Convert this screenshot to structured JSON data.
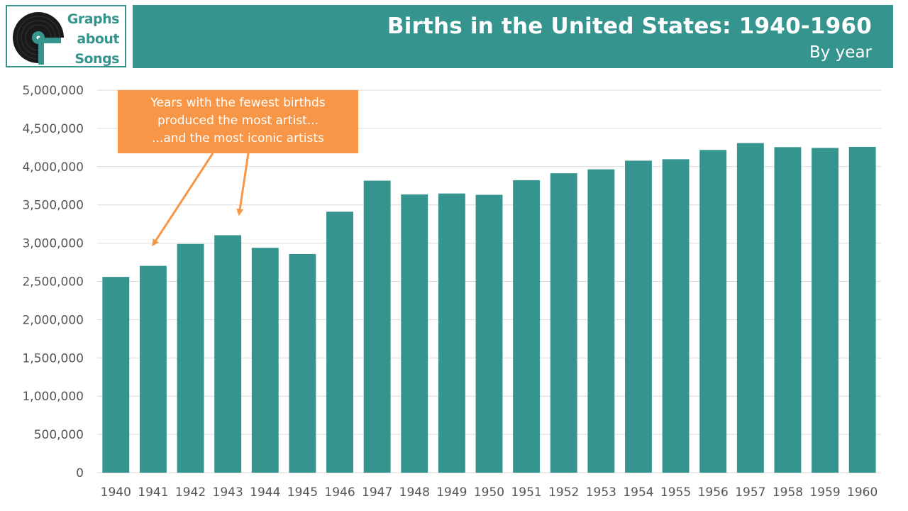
{
  "logo": {
    "line1": "Graphs",
    "line2": "about",
    "line3": "Songs",
    "icon": "vinyl-record-icon",
    "color": "#35948e"
  },
  "header": {
    "title": "Births in the United States: 1940-1960",
    "subtitle": "By year",
    "band_color": "#35948e"
  },
  "annotation": {
    "line1": "Years with the fewest birthds",
    "line2": "produced the most artist...",
    "line3": "...and the most iconic artists",
    "color": "#f79646",
    "arrow_targets": [
      "1941",
      "1943"
    ]
  },
  "chart_data": {
    "type": "bar",
    "categories": [
      "1940",
      "1941",
      "1942",
      "1943",
      "1944",
      "1945",
      "1946",
      "1947",
      "1948",
      "1949",
      "1950",
      "1951",
      "1952",
      "1953",
      "1954",
      "1955",
      "1956",
      "1957",
      "1958",
      "1959",
      "1960"
    ],
    "values": [
      2559000,
      2703000,
      2989000,
      3104000,
      2939000,
      2858000,
      3411000,
      3817000,
      3637000,
      3649000,
      3632000,
      3823000,
      3913000,
      3965000,
      4078000,
      4097000,
      4218000,
      4308000,
      4255000,
      4245000,
      4258000
    ],
    "ylim": [
      0,
      5000000
    ],
    "yticks": [
      0,
      500000,
      1000000,
      1500000,
      2000000,
      2500000,
      3000000,
      3500000,
      4000000,
      4500000,
      5000000
    ],
    "ytick_labels": [
      "0",
      "500,000",
      "1,000,000",
      "1,500,000",
      "2,000,000",
      "2,500,000",
      "3,000,000",
      "3,500,000",
      "4,000,000",
      "4,500,000",
      "5,000,000"
    ],
    "grid": true,
    "bar_color": "#35948e",
    "grid_color": "#d9d9d9",
    "title": "Births in the United States: 1940-1960",
    "subtitle": "By year",
    "xlabel": "",
    "ylabel": ""
  }
}
